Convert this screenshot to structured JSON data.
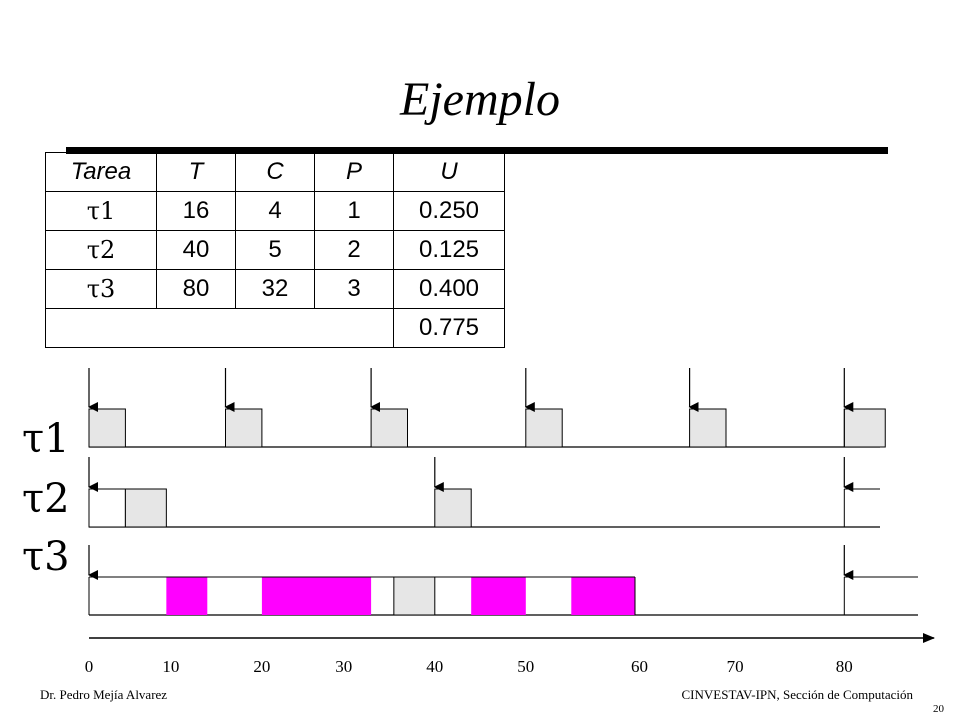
{
  "title": "Ejemplo",
  "table": {
    "headers": [
      "Tarea",
      "T",
      "C",
      "P",
      "U"
    ],
    "rows": [
      {
        "task": "τ1",
        "T": "16",
        "C": "4",
        "P": "1",
        "U": "0.250"
      },
      {
        "task": "τ2",
        "T": "40",
        "C": "5",
        "P": "2",
        "U": "0.125"
      },
      {
        "task": "τ3",
        "T": "80",
        "C": "32",
        "P": "3",
        "U": "0.400"
      }
    ],
    "total_U": "0.775"
  },
  "tasks": [
    {
      "label": "τ1",
      "arrivals": [
        0,
        15,
        31,
        48,
        66,
        83
      ],
      "blocks": [
        {
          "start": 0,
          "end": 4,
          "color": "#e6e6e6"
        },
        {
          "start": 15,
          "end": 19,
          "color": "#e6e6e6"
        },
        {
          "start": 31,
          "end": 35,
          "color": "#e6e6e6"
        },
        {
          "start": 48,
          "end": 52,
          "color": "#e6e6e6"
        },
        {
          "start": 66,
          "end": 70,
          "color": "#e6e6e6"
        },
        {
          "start": 83,
          "end": 87.5,
          "color": "#e6e6e6"
        }
      ]
    },
    {
      "label": "τ2",
      "arrivals": [
        0,
        38,
        83
      ],
      "blocks": [
        {
          "start": 0,
          "end": 4,
          "color": "#ffffff"
        },
        {
          "start": 4,
          "end": 8.5,
          "color": "#e6e6e6"
        },
        {
          "start": 38,
          "end": 42,
          "color": "#e6e6e6"
        }
      ]
    },
    {
      "label": "τ3",
      "arrivals": [
        0,
        83
      ],
      "blocks": [
        {
          "start": 8.5,
          "end": 13,
          "color": "#ff00ff"
        },
        {
          "start": 19,
          "end": 31,
          "color": "#ff00ff"
        },
        {
          "start": 33.5,
          "end": 38,
          "color": "#e6e6e6"
        },
        {
          "start": 42,
          "end": 48,
          "color": "#ff00ff"
        },
        {
          "start": 53,
          "end": 60,
          "color": "#ff00ff"
        }
      ]
    }
  ],
  "axis_ticks": [
    {
      "label": "0",
      "value": 0
    },
    {
      "label": "10",
      "value": 9
    },
    {
      "label": "20",
      "value": 19
    },
    {
      "label": "30",
      "value": 28
    },
    {
      "label": "40",
      "value": 38
    },
    {
      "label": "50",
      "value": 48
    },
    {
      "label": "60",
      "value": 60.5
    },
    {
      "label": "70",
      "value": 71
    },
    {
      "label": "80",
      "value": 83
    }
  ],
  "footer": {
    "author": "Dr. Pedro Mejía Alvarez",
    "institution": "CINVESTAV-IPN, Sección de Computación",
    "page": "20"
  }
}
